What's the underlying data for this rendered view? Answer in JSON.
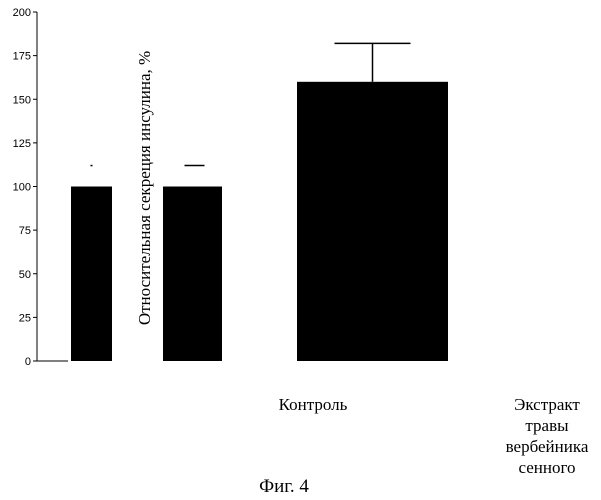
{
  "chart_data": {
    "type": "bar",
    "ylabel": "Относительная секреция инсулина, %",
    "ylim": [
      0,
      200
    ],
    "yticks": [
      0,
      25,
      50,
      75,
      100,
      125,
      150,
      175,
      200
    ],
    "categories": [
      "Контроль",
      "Экстракт травы вербейника сенного"
    ],
    "category_label_lines": [
      [
        "Контроль"
      ],
      [
        "Экстракт",
        "травы",
        "вербейника",
        "сенного"
      ]
    ],
    "values": [
      100,
      160
    ],
    "error": [
      12,
      22
    ],
    "bar_color": "#000000",
    "grid": false,
    "legend": "none"
  },
  "caption": "Фиг. 4"
}
